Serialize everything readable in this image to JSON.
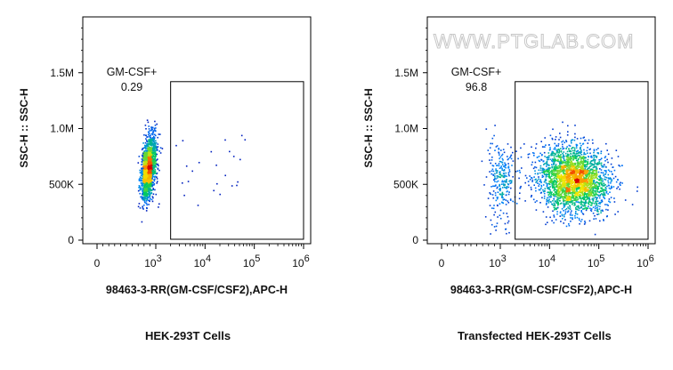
{
  "watermark": "WWW.PTGLAB.COM",
  "panels": [
    {
      "caption": "HEK-293T Cells"
    },
    {
      "caption": "Transfected HEK-293T Cells"
    }
  ],
  "chart_data": [
    {
      "type": "scatter",
      "title": "",
      "xlabel": "98463-3-RR(GM-CSF/CSF2),APC-H",
      "ylabel": "SSC-H :: SSC-H",
      "x_scale": "biexponential",
      "x_ticks": [
        "0",
        "10^3",
        "10^4",
        "10^5",
        "10^6"
      ],
      "y_ticks": [
        "0",
        "500K",
        "1.0M",
        "1.5M"
      ],
      "ylim": [
        0,
        2000000
      ],
      "gate": {
        "name": "GM-CSF+",
        "percent": "0.29",
        "x_from": 2000,
        "x_to": 1000000,
        "y_from": 0,
        "y_to": 1420000
      },
      "populations": [
        {
          "label": "main",
          "x_center": 400,
          "y_center": 650000,
          "density": "high"
        },
        {
          "label": "gate events",
          "x_center": 5000,
          "y_center": 650000,
          "density": "sparse"
        }
      ]
    },
    {
      "type": "scatter",
      "title": "",
      "xlabel": "98463-3-RR(GM-CSF/CSF2),APC-H",
      "ylabel": "SSC-H :: SSC-H",
      "x_scale": "biexponential",
      "x_ticks": [
        "0",
        "10^3",
        "10^4",
        "10^5",
        "10^6"
      ],
      "y_ticks": [
        "0",
        "500K",
        "1.0M",
        "1.5M"
      ],
      "ylim": [
        0,
        2000000
      ],
      "gate": {
        "name": "GM-CSF+",
        "percent": "96.8",
        "x_from": 2000,
        "x_to": 1000000,
        "y_from": 0,
        "y_to": 1420000
      },
      "populations": [
        {
          "label": "main",
          "x_center": 30000,
          "y_center": 550000,
          "density": "high"
        },
        {
          "label": "negative tail",
          "x_center": 800,
          "y_center": 650000,
          "density": "sparse"
        }
      ]
    }
  ]
}
